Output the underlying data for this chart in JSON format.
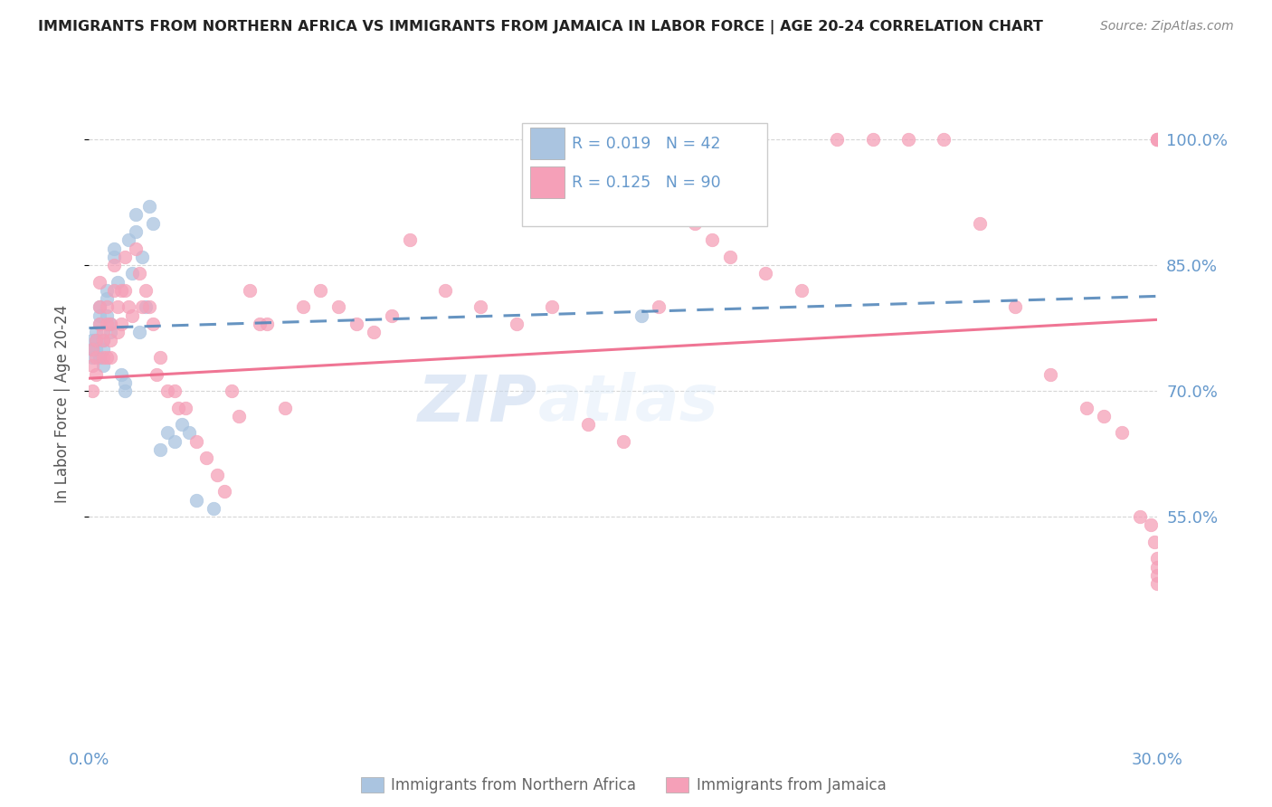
{
  "title": "IMMIGRANTS FROM NORTHERN AFRICA VS IMMIGRANTS FROM JAMAICA IN LABOR FORCE | AGE 20-24 CORRELATION CHART",
  "source": "Source: ZipAtlas.com",
  "ylabel": "In Labor Force | Age 20-24",
  "xlim": [
    0.0,
    0.3
  ],
  "ylim": [
    0.3,
    1.07
  ],
  "yticks": [
    0.55,
    0.7,
    0.85,
    1.0
  ],
  "ytick_labels": [
    "55.0%",
    "70.0%",
    "85.0%",
    "100.0%"
  ],
  "background_color": "#ffffff",
  "grid_color": "#cccccc",
  "blue_color": "#aac4e0",
  "pink_color": "#f5a0b8",
  "blue_line_color": "#5588bb",
  "pink_line_color": "#ee6688",
  "right_axis_color": "#6699cc",
  "blue_R": 0.019,
  "blue_N": 42,
  "pink_R": 0.125,
  "pink_N": 90,
  "blue_points_x": [
    0.001,
    0.001,
    0.001,
    0.002,
    0.002,
    0.002,
    0.003,
    0.003,
    0.003,
    0.003,
    0.004,
    0.004,
    0.004,
    0.005,
    0.005,
    0.005,
    0.006,
    0.006,
    0.007,
    0.007,
    0.008,
    0.009,
    0.01,
    0.01,
    0.011,
    0.012,
    0.013,
    0.013,
    0.014,
    0.015,
    0.016,
    0.017,
    0.018,
    0.02,
    0.022,
    0.024,
    0.026,
    0.028,
    0.03,
    0.035,
    0.13,
    0.155
  ],
  "blue_points_y": [
    0.76,
    0.75,
    0.74,
    0.77,
    0.76,
    0.75,
    0.8,
    0.79,
    0.78,
    0.74,
    0.76,
    0.75,
    0.73,
    0.82,
    0.81,
    0.79,
    0.78,
    0.77,
    0.86,
    0.87,
    0.83,
    0.72,
    0.71,
    0.7,
    0.88,
    0.84,
    0.91,
    0.89,
    0.77,
    0.86,
    0.8,
    0.92,
    0.9,
    0.63,
    0.65,
    0.64,
    0.66,
    0.65,
    0.57,
    0.56,
    0.99,
    0.79
  ],
  "pink_points_x": [
    0.001,
    0.001,
    0.001,
    0.002,
    0.002,
    0.002,
    0.003,
    0.003,
    0.003,
    0.004,
    0.004,
    0.004,
    0.005,
    0.005,
    0.005,
    0.006,
    0.006,
    0.006,
    0.007,
    0.007,
    0.008,
    0.008,
    0.009,
    0.009,
    0.01,
    0.01,
    0.011,
    0.012,
    0.013,
    0.014,
    0.015,
    0.016,
    0.017,
    0.018,
    0.019,
    0.02,
    0.022,
    0.024,
    0.025,
    0.027,
    0.03,
    0.033,
    0.036,
    0.038,
    0.04,
    0.042,
    0.045,
    0.048,
    0.05,
    0.055,
    0.06,
    0.065,
    0.07,
    0.075,
    0.08,
    0.085,
    0.09,
    0.1,
    0.11,
    0.12,
    0.13,
    0.14,
    0.15,
    0.16,
    0.17,
    0.175,
    0.18,
    0.19,
    0.2,
    0.21,
    0.22,
    0.23,
    0.24,
    0.25,
    0.26,
    0.27,
    0.28,
    0.285,
    0.29,
    0.295,
    0.298,
    0.299,
    0.3,
    0.3,
    0.3,
    0.3,
    0.3,
    0.3,
    0.3,
    0.3
  ],
  "pink_points_y": [
    0.75,
    0.73,
    0.7,
    0.76,
    0.74,
    0.72,
    0.83,
    0.8,
    0.78,
    0.77,
    0.76,
    0.74,
    0.8,
    0.78,
    0.74,
    0.78,
    0.76,
    0.74,
    0.85,
    0.82,
    0.8,
    0.77,
    0.82,
    0.78,
    0.86,
    0.82,
    0.8,
    0.79,
    0.87,
    0.84,
    0.8,
    0.82,
    0.8,
    0.78,
    0.72,
    0.74,
    0.7,
    0.7,
    0.68,
    0.68,
    0.64,
    0.62,
    0.6,
    0.58,
    0.7,
    0.67,
    0.82,
    0.78,
    0.78,
    0.68,
    0.8,
    0.82,
    0.8,
    0.78,
    0.77,
    0.79,
    0.88,
    0.82,
    0.8,
    0.78,
    0.8,
    0.66,
    0.64,
    0.8,
    0.9,
    0.88,
    0.86,
    0.84,
    0.82,
    1.0,
    1.0,
    1.0,
    1.0,
    0.9,
    0.8,
    0.72,
    0.68,
    0.67,
    0.65,
    0.55,
    0.54,
    0.52,
    0.5,
    0.49,
    0.48,
    0.47,
    1.0,
    1.0,
    1.0,
    1.0
  ]
}
